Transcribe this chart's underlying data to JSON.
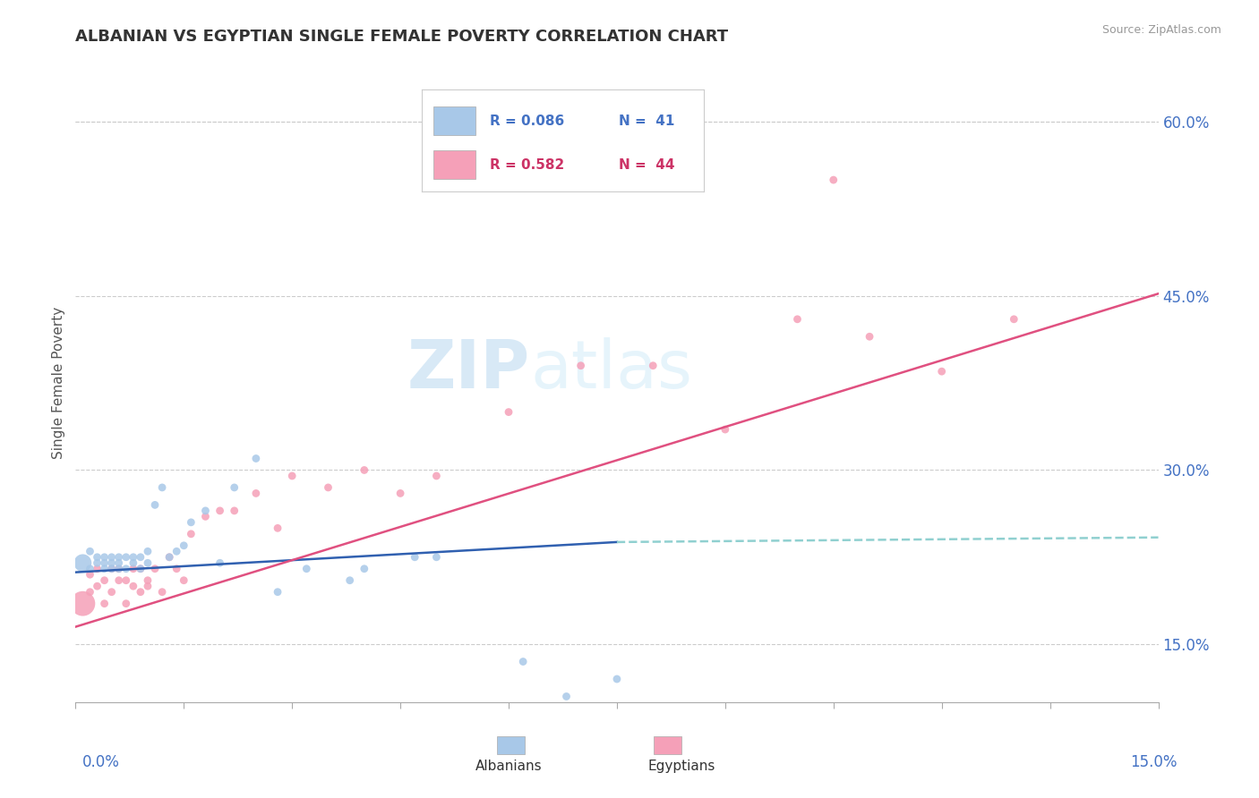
{
  "title": "ALBANIAN VS EGYPTIAN SINGLE FEMALE POVERTY CORRELATION CHART",
  "source": "Source: ZipAtlas.com",
  "ylabel": "Single Female Poverty",
  "ytick_values": [
    0.15,
    0.3,
    0.45,
    0.6
  ],
  "xlim": [
    0.0,
    0.15
  ],
  "ylim": [
    0.1,
    0.65
  ],
  "watermark_line1": "ZIP",
  "watermark_line2": "atlas",
  "legend_blue_r": "R = 0.086",
  "legend_blue_n": "N =  41",
  "legend_pink_r": "R = 0.582",
  "legend_pink_n": "N =  44",
  "blue_dot_color": "#a8c8e8",
  "pink_dot_color": "#f5a0b8",
  "blue_line_color": "#3060b0",
  "pink_line_color": "#e05080",
  "dash_line_color": "#90d0d0",
  "legend_blue_color": "#a8c8e8",
  "legend_pink_color": "#f5a0b8",
  "albanian_x": [
    0.001,
    0.002,
    0.002,
    0.003,
    0.003,
    0.004,
    0.004,
    0.004,
    0.005,
    0.005,
    0.005,
    0.006,
    0.006,
    0.006,
    0.007,
    0.007,
    0.008,
    0.008,
    0.009,
    0.009,
    0.01,
    0.01,
    0.011,
    0.012,
    0.013,
    0.014,
    0.015,
    0.016,
    0.018,
    0.02,
    0.022,
    0.025,
    0.028,
    0.032,
    0.038,
    0.04,
    0.047,
    0.05,
    0.062,
    0.068,
    0.075
  ],
  "albanian_y": [
    0.22,
    0.23,
    0.215,
    0.22,
    0.225,
    0.215,
    0.22,
    0.225,
    0.215,
    0.22,
    0.225,
    0.215,
    0.22,
    0.225,
    0.215,
    0.225,
    0.22,
    0.225,
    0.215,
    0.225,
    0.22,
    0.23,
    0.27,
    0.285,
    0.225,
    0.23,
    0.235,
    0.255,
    0.265,
    0.22,
    0.285,
    0.31,
    0.195,
    0.215,
    0.205,
    0.215,
    0.225,
    0.225,
    0.135,
    0.105,
    0.12
  ],
  "albanian_sizes": [
    200,
    40,
    40,
    40,
    40,
    40,
    40,
    40,
    40,
    40,
    40,
    40,
    40,
    40,
    40,
    40,
    40,
    40,
    40,
    40,
    40,
    40,
    40,
    40,
    40,
    40,
    40,
    40,
    40,
    40,
    40,
    40,
    40,
    40,
    40,
    40,
    40,
    40,
    40,
    40,
    40
  ],
  "egyptian_x": [
    0.001,
    0.002,
    0.002,
    0.003,
    0.003,
    0.004,
    0.004,
    0.005,
    0.005,
    0.006,
    0.006,
    0.007,
    0.007,
    0.008,
    0.008,
    0.009,
    0.009,
    0.01,
    0.01,
    0.011,
    0.012,
    0.013,
    0.014,
    0.015,
    0.016,
    0.018,
    0.02,
    0.022,
    0.025,
    0.028,
    0.03,
    0.035,
    0.04,
    0.045,
    0.05,
    0.06,
    0.07,
    0.08,
    0.09,
    0.1,
    0.105,
    0.11,
    0.12,
    0.13
  ],
  "egyptian_y": [
    0.185,
    0.195,
    0.21,
    0.2,
    0.215,
    0.185,
    0.205,
    0.215,
    0.195,
    0.205,
    0.215,
    0.185,
    0.205,
    0.2,
    0.215,
    0.195,
    0.215,
    0.2,
    0.205,
    0.215,
    0.195,
    0.225,
    0.215,
    0.205,
    0.245,
    0.26,
    0.265,
    0.265,
    0.28,
    0.25,
    0.295,
    0.285,
    0.3,
    0.28,
    0.295,
    0.35,
    0.39,
    0.39,
    0.335,
    0.43,
    0.55,
    0.415,
    0.385,
    0.43
  ],
  "egyptian_sizes": [
    400,
    40,
    40,
    40,
    40,
    40,
    40,
    40,
    40,
    40,
    40,
    40,
    40,
    40,
    40,
    40,
    40,
    40,
    40,
    40,
    40,
    40,
    40,
    40,
    40,
    40,
    40,
    40,
    40,
    40,
    40,
    40,
    40,
    40,
    40,
    40,
    40,
    40,
    40,
    40,
    40,
    40,
    40,
    40
  ]
}
